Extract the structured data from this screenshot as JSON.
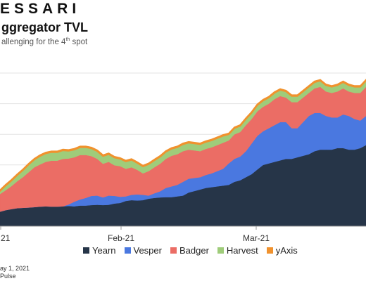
{
  "header": {
    "logo_text": "ESSARI",
    "title": "ggregator TVL",
    "subtitle_pre": "allenging for the 4",
    "subtitle_sup": "th",
    "subtitle_post": " spot"
  },
  "footer": {
    "date": "ay 1, 2021",
    "source": "Pulse"
  },
  "chart_data": {
    "type": "area",
    "stacked": true,
    "x_ticks": [
      "21",
      "Feb-21",
      "Mar-21"
    ],
    "ylim": [
      0,
      1
    ],
    "grid": true,
    "legend_position": "bottom",
    "x": [
      0,
      1,
      2,
      3,
      4,
      5,
      6,
      7,
      8,
      9,
      10,
      11,
      12,
      13,
      14,
      15,
      16,
      17,
      18,
      19,
      20,
      21,
      22,
      23,
      24,
      25,
      26,
      27,
      28,
      29,
      30,
      31,
      32,
      33,
      34,
      35,
      36,
      37,
      38,
      39,
      40,
      41,
      42,
      43,
      44,
      45,
      46,
      47,
      48,
      49,
      50,
      51,
      52,
      53,
      54,
      55,
      56,
      57,
      58,
      59,
      60,
      61,
      62,
      63,
      64
    ],
    "series": [
      {
        "name": "Yearn",
        "color": "#263548",
        "values": [
          0.095,
          0.105,
          0.112,
          0.118,
          0.12,
          0.122,
          0.125,
          0.128,
          0.13,
          0.128,
          0.128,
          0.13,
          0.132,
          0.13,
          0.135,
          0.135,
          0.138,
          0.14,
          0.138,
          0.14,
          0.148,
          0.152,
          0.165,
          0.17,
          0.168,
          0.17,
          0.18,
          0.185,
          0.188,
          0.19,
          0.19,
          0.195,
          0.2,
          0.22,
          0.23,
          0.24,
          0.25,
          0.255,
          0.26,
          0.265,
          0.27,
          0.29,
          0.3,
          0.32,
          0.34,
          0.37,
          0.4,
          0.41,
          0.42,
          0.43,
          0.44,
          0.44,
          0.45,
          0.46,
          0.47,
          0.49,
          0.5,
          0.5,
          0.5,
          0.51,
          0.51,
          0.5,
          0.5,
          0.51,
          0.53
        ]
      },
      {
        "name": "Vesper",
        "color": "#4a78e0",
        "values": [
          0.0,
          0.0,
          0.0,
          0.0,
          0.0,
          0.0,
          0.0,
          0.0,
          0.0,
          0.0,
          0.0,
          0.0,
          0.01,
          0.03,
          0.04,
          0.05,
          0.06,
          0.06,
          0.05,
          0.06,
          0.05,
          0.04,
          0.03,
          0.035,
          0.04,
          0.035,
          0.02,
          0.03,
          0.04,
          0.06,
          0.07,
          0.075,
          0.09,
          0.09,
          0.085,
          0.08,
          0.085,
          0.09,
          0.1,
          0.11,
          0.14,
          0.15,
          0.155,
          0.17,
          0.2,
          0.22,
          0.22,
          0.23,
          0.24,
          0.25,
          0.24,
          0.2,
          0.19,
          0.22,
          0.25,
          0.25,
          0.24,
          0.22,
          0.21,
          0.2,
          0.22,
          0.22,
          0.2,
          0.18,
          0.19
        ]
      },
      {
        "name": "Badger",
        "color": "#eb6d65",
        "values": [
          0.115,
          0.13,
          0.15,
          0.175,
          0.2,
          0.23,
          0.26,
          0.275,
          0.29,
          0.3,
          0.3,
          0.31,
          0.3,
          0.29,
          0.29,
          0.28,
          0.26,
          0.24,
          0.22,
          0.22,
          0.2,
          0.2,
          0.18,
          0.18,
          0.16,
          0.14,
          0.16,
          0.17,
          0.18,
          0.19,
          0.2,
          0.2,
          0.2,
          0.19,
          0.18,
          0.17,
          0.17,
          0.17,
          0.17,
          0.17,
          0.15,
          0.16,
          0.16,
          0.17,
          0.16,
          0.16,
          0.16,
          0.16,
          0.17,
          0.17,
          0.16,
          0.17,
          0.17,
          0.16,
          0.15,
          0.16,
          0.17,
          0.16,
          0.16,
          0.17,
          0.17,
          0.16,
          0.17,
          0.18,
          0.19
        ]
      },
      {
        "name": "Harvest",
        "color": "#9fcc7a",
        "values": [
          0.02,
          0.03,
          0.035,
          0.04,
          0.045,
          0.05,
          0.05,
          0.055,
          0.055,
          0.055,
          0.055,
          0.055,
          0.05,
          0.05,
          0.05,
          0.05,
          0.05,
          0.05,
          0.05,
          0.05,
          0.05,
          0.048,
          0.048,
          0.048,
          0.045,
          0.045,
          0.045,
          0.045,
          0.045,
          0.045,
          0.045,
          0.045,
          0.045,
          0.045,
          0.045,
          0.045,
          0.045,
          0.045,
          0.045,
          0.045,
          0.04,
          0.04,
          0.04,
          0.04,
          0.04,
          0.04,
          0.04,
          0.04,
          0.04,
          0.04,
          0.04,
          0.04,
          0.04,
          0.04,
          0.04,
          0.04,
          0.04,
          0.04,
          0.04,
          0.04,
          0.04,
          0.04,
          0.04,
          0.04,
          0.04
        ]
      },
      {
        "name": "yAxis",
        "color": "#f0922e",
        "values": [
          0.006,
          0.006,
          0.006,
          0.006,
          0.006,
          0.006,
          0.006,
          0.006,
          0.006,
          0.006,
          0.006,
          0.006,
          0.006,
          0.006,
          0.006,
          0.006,
          0.006,
          0.006,
          0.006,
          0.006,
          0.006,
          0.006,
          0.006,
          0.006,
          0.006,
          0.006,
          0.006,
          0.006,
          0.006,
          0.006,
          0.006,
          0.006,
          0.006,
          0.006,
          0.006,
          0.006,
          0.006,
          0.006,
          0.006,
          0.006,
          0.006,
          0.006,
          0.006,
          0.006,
          0.006,
          0.006,
          0.006,
          0.006,
          0.006,
          0.006,
          0.006,
          0.006,
          0.006,
          0.006,
          0.006,
          0.006,
          0.006,
          0.006,
          0.006,
          0.006,
          0.006,
          0.006,
          0.006,
          0.006,
          0.006
        ]
      }
    ]
  }
}
